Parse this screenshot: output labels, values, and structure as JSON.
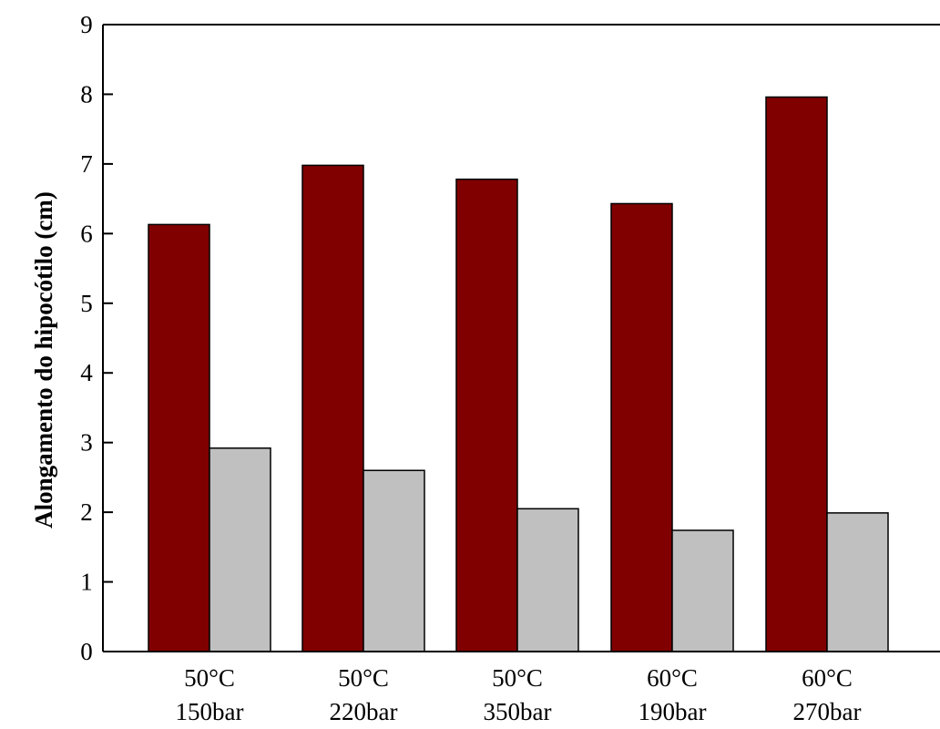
{
  "chart_data": {
    "type": "bar",
    "title": "",
    "xlabel": "",
    "ylabel": "Alongamento do hipocótilo (cm)",
    "categories": [
      [
        "50°C",
        "150bar"
      ],
      [
        "50°C",
        "220bar"
      ],
      [
        "50°C",
        "350bar"
      ],
      [
        "60°C",
        "190bar"
      ],
      [
        "60°C",
        "270bar"
      ]
    ],
    "series": [
      {
        "color": "#800000",
        "values": [
          6.13,
          6.98,
          6.78,
          6.43,
          7.96
        ]
      },
      {
        "color": "#c0c0c0",
        "values": [
          2.92,
          2.6,
          2.05,
          1.74,
          1.99
        ]
      }
    ],
    "ylim": [
      0,
      9
    ],
    "yticks": [
      "0",
      "1",
      "2",
      "3",
      "4",
      "5",
      "6",
      "7",
      "8",
      "9"
    ],
    "grid": false,
    "legend": "none"
  }
}
